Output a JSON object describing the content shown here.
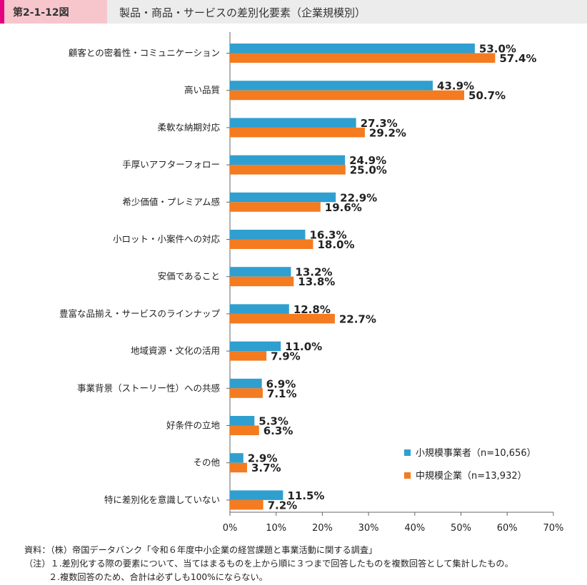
{
  "header": {
    "figure_number": "第2-1-12図",
    "title": "製品・商品・サービスの差別化要素（企業規模別）"
  },
  "colors": {
    "small": "#2f9fd0",
    "medium": "#f47b20",
    "header_bg": "#ececec",
    "tag_bg": "#f7c6cd",
    "tag_accent": "#e4007f"
  },
  "chart_data": {
    "type": "bar",
    "orientation": "horizontal",
    "categories": [
      "顧客との密着性・コミュニケーション",
      "高い品質",
      "柔軟な納期対応",
      "手厚いアフターフォロー",
      "希少価値・プレミアム感",
      "小ロット・小案件への対応",
      "安価であること",
      "豊富な品揃え・サービスのラインナップ",
      "地域資源・文化の活用",
      "事業背景（ストーリー性）への共感",
      "好条件の立地",
      "その他",
      "特に差別化を意識していない"
    ],
    "series": [
      {
        "name": "小規模事業者（n=10,656）",
        "values": [
          53.0,
          43.9,
          27.3,
          24.9,
          22.9,
          16.3,
          13.2,
          12.8,
          11.0,
          6.9,
          5.3,
          2.9,
          11.5
        ],
        "labels": [
          "53.0%",
          "43.9%",
          "27.3%",
          "24.9%",
          "22.9%",
          "16.3%",
          "13.2%",
          "12.8%",
          "11.0%",
          "6.9%",
          "5.3%",
          "2.9%",
          "11.5%"
        ]
      },
      {
        "name": "中規模企業（n=13,932）",
        "values": [
          57.4,
          50.7,
          29.2,
          25.0,
          19.6,
          18.0,
          13.8,
          22.7,
          7.9,
          7.1,
          6.3,
          3.7,
          7.2
        ],
        "labels": [
          "57.4%",
          "50.7%",
          "29.2%",
          "25.0%",
          "19.6%",
          "18.0%",
          "13.8%",
          "22.7%",
          "7.9%",
          "7.1%",
          "6.3%",
          "3.7%",
          "7.2%"
        ]
      }
    ],
    "xlim": [
      0,
      70
    ],
    "xticks": [
      "0%",
      "10%",
      "20%",
      "30%",
      "40%",
      "50%",
      "60%",
      "70%"
    ],
    "legend_position": "bottom-right",
    "grid": false
  },
  "footer": {
    "source": "資料：（株）帝国データバンク「令和６年度中小企業の経営課題と事業活動に関する調査」",
    "note1": "（注）１.差別化する際の要素について、当てはまるものを上から順に３つまで回答したものを複数回答として集計したもの。",
    "note2": "２.複数回答のため、合計は必ずしも100%にならない。"
  }
}
